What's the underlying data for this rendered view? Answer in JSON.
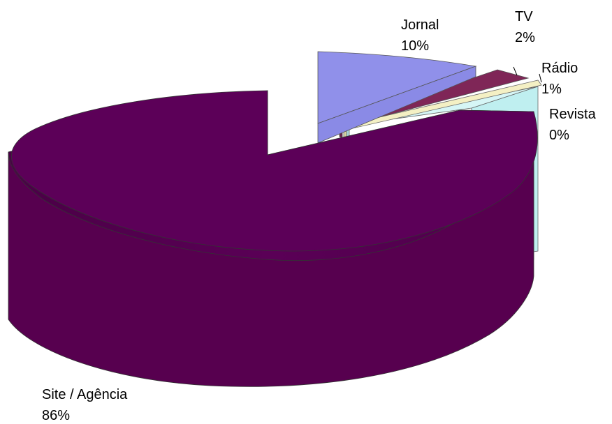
{
  "chart_data": {
    "type": "pie",
    "subtype": "3d-exploded",
    "title": "",
    "legend": "none",
    "categories": [
      "Site / Agência",
      "Jornal",
      "TV",
      "Rádio",
      "Revista"
    ],
    "values": [
      86,
      10,
      2,
      1,
      0.5
    ],
    "labels": [
      "86%",
      "10%",
      "2%",
      "1%",
      "0%"
    ],
    "colors": {
      "Site / Agência": "#5c0058",
      "Jornal": "#8a8ae6",
      "TV": "#7f2657",
      "Rádio": "#f4f0c4",
      "Revista": "#bfeff0"
    }
  }
}
